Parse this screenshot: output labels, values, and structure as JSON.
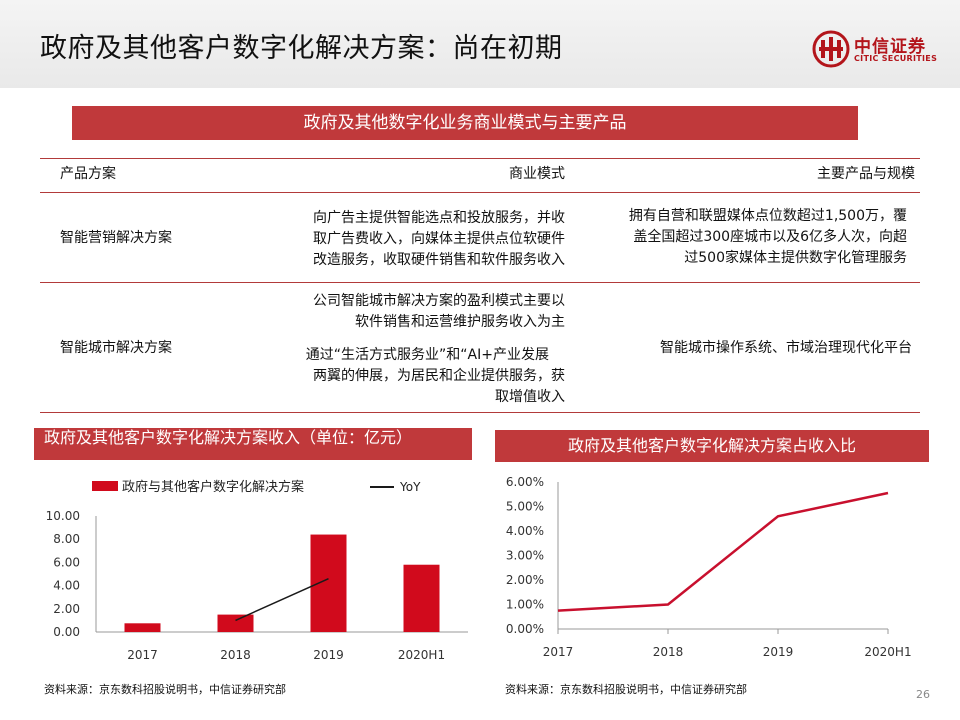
{
  "header": {
    "title": "政府及其他客户数字化解决方案：尚在初期",
    "logo_cn": "中信证券",
    "logo_en": "CITIC SECURITIES"
  },
  "banner": "政府及其他数字化业务商业模式与主要产品",
  "table": {
    "headers": [
      "产品方案",
      "商业模式",
      "主要产品与规模"
    ],
    "rows": [
      {
        "product": "智能营销解决方案",
        "model": [
          "向广告主提供智能选点和投放服务，并收",
          "取广告费收入，向媒体主提供点位软硬件",
          "改造服务，收取硬件销售和软件服务收入"
        ],
        "scale": [
          "拥有自营和联盟媒体点位数超过1,500万，覆",
          "盖全国超过300座城市以及6亿多人次，向超",
          "过500家媒体主提供数字化管理服务"
        ]
      },
      {
        "product": "智能城市解决方案",
        "model": [
          "公司智能城市解决方案的盈利模式主要以",
          "软件销售和运营维护服务收入为主",
          "通过“生活方式服务业”和“AI+产业发展",
          "两翼的伸展，为居民和企业提供服务，获",
          "取增值收入"
        ],
        "scale": [
          "智能城市操作系统、市域治理现代化平台"
        ]
      }
    ]
  },
  "left_chart_title": "政府及其他客户数字化解决方案收入（单位：亿元）",
  "right_chart_title": "政府及其他客户数字化解决方案占收入比",
  "source_left": "资料来源：京东数科招股说明书，中信证券研究部",
  "source_right": "资料来源：京东数科招股说明书，中信证券研究部",
  "page_number": "26",
  "colors": {
    "accent": "#c0393b",
    "bar": "#d10a1c",
    "line_right": "#c8102e",
    "yoy": "#1a1a1a"
  },
  "chart_data": [
    {
      "type": "bar",
      "title": "政府及其他客户数字化解决方案收入（单位：亿元）",
      "categories": [
        "2017",
        "2018",
        "2019",
        "2020H1"
      ],
      "series": [
        {
          "name": "政府与其他客户数字化解决方案",
          "type": "bar",
          "values": [
            0.75,
            1.5,
            8.4,
            5.8
          ]
        },
        {
          "name": "YoY",
          "type": "line",
          "values": [
            null,
            1.0,
            4.6,
            null
          ]
        }
      ],
      "y_ticks": [
        "0.00",
        "2.00",
        "4.00",
        "6.00",
        "8.00",
        "10.00"
      ],
      "ylim": [
        0,
        10
      ],
      "legend": "top"
    },
    {
      "type": "line",
      "title": "政府及其他客户数字化解决方案占收入比",
      "categories": [
        "2017",
        "2018",
        "2019",
        "2020H1"
      ],
      "values": [
        0.75,
        1.0,
        4.6,
        5.55
      ],
      "y_ticks": [
        "0.00%",
        "1.00%",
        "2.00%",
        "3.00%",
        "4.00%",
        "5.00%",
        "6.00%"
      ],
      "ylim": [
        0,
        6
      ]
    }
  ]
}
